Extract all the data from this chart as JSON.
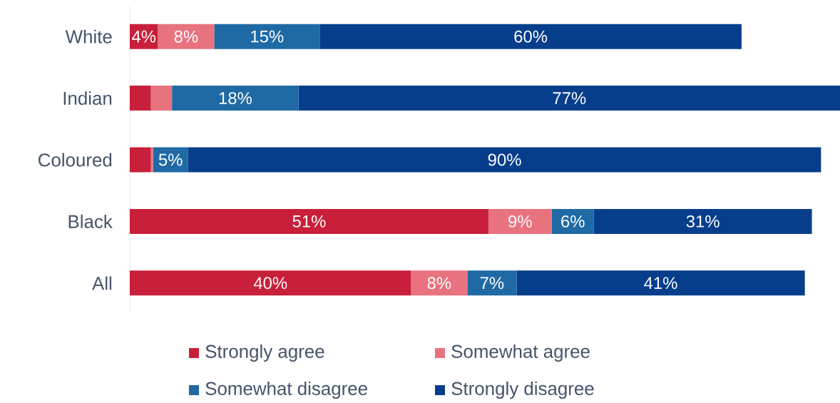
{
  "chart_data": {
    "type": "bar",
    "orientation": "horizontal",
    "stacked": true,
    "legend": "bottom",
    "categories": [
      "White",
      "Indian",
      "Coloured",
      "Black",
      "All"
    ],
    "series": [
      {
        "name": "Strongly agree",
        "color": "#c8203a",
        "values": [
          4,
          3,
          3,
          51,
          40
        ],
        "value_labels": [
          "4%",
          null,
          null,
          "51%",
          "40%"
        ]
      },
      {
        "name": "Somewhat agree",
        "color": "#e8727e",
        "values": [
          8,
          3,
          0.3,
          9,
          8
        ],
        "value_labels": [
          "8%",
          null,
          null,
          "9%",
          "8%"
        ]
      },
      {
        "name": "Somewhat disagree",
        "color": "#1f6aa5",
        "values": [
          15,
          18,
          5,
          6,
          7
        ],
        "value_labels": [
          "15%",
          "18%",
          "5%",
          "6%",
          "7%"
        ]
      },
      {
        "name": "Strongly disagree",
        "color": "#073e8c",
        "values": [
          60,
          77,
          90,
          31,
          41
        ],
        "value_labels": [
          "60%",
          "77%",
          "90%",
          "31%",
          "41%"
        ]
      }
    ]
  }
}
